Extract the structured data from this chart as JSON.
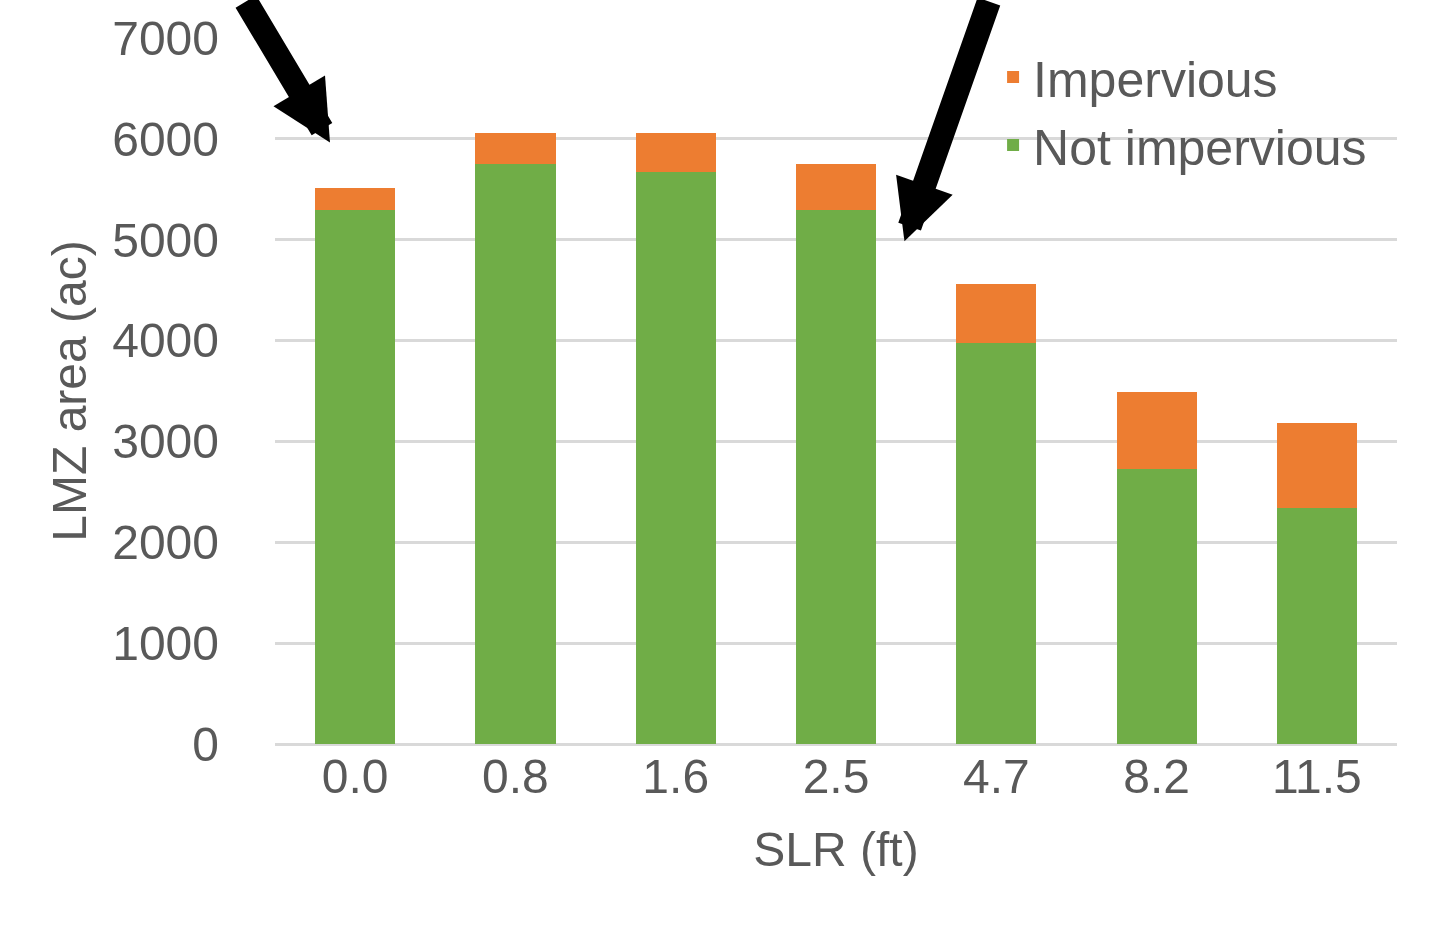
{
  "chart_data": {
    "type": "bar",
    "stacked": true,
    "xlabel": "SLR (ft)",
    "ylabel": "LMZ area (ac)",
    "categories": [
      "0.0",
      "0.8",
      "1.6",
      "2.5",
      "4.7",
      "8.2",
      "11.5"
    ],
    "series": [
      {
        "name": "Not impervious",
        "color": "#70ad47",
        "values": [
          5290,
          5750,
          5670,
          5290,
          3980,
          2730,
          2340
        ]
      },
      {
        "name": "Impervious",
        "color": "#ed7d31",
        "values": [
          220,
          310,
          390,
          460,
          580,
          760,
          840
        ]
      }
    ],
    "ylim": [
      0,
      7000
    ],
    "yticks": [
      0,
      1000,
      2000,
      3000,
      4000,
      5000,
      6000,
      7000
    ],
    "grid": "y",
    "legend": "top right"
  }
}
